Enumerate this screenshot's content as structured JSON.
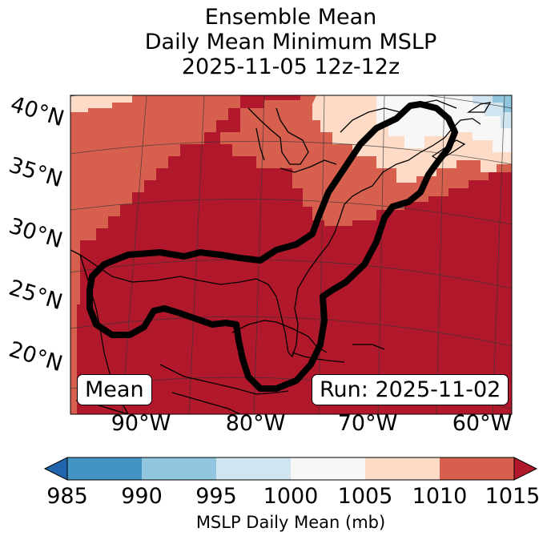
{
  "title": {
    "line1": "Ensemble Mean",
    "line2": "Daily Mean Minimum MSLP",
    "line3": "2025-11-05 12z-12z"
  },
  "map": {
    "lat_labels": [
      "40°N",
      "35°N",
      "30°N",
      "25°N",
      "20°N"
    ],
    "lon_labels": [
      "90°W",
      "80°W",
      "70°W",
      "60°W"
    ],
    "badge_left": "Mean",
    "badge_right": "Run: 2025-11-02",
    "contour_color": "#000000",
    "field_colors": {
      "<985": "#2166ac",
      "985-990": "#4393c3",
      "990-995": "#92c5de",
      "995-1000": "#d1e5f0",
      "1000-1005": "#f7f7f7",
      "1005-1010": "#fddbc7",
      "1010-1015": "#d6604d",
      ">1015": "#b2182b"
    }
  },
  "colorbar": {
    "ticks": [
      "985",
      "990",
      "995",
      "1000",
      "1005",
      "1010",
      "1015"
    ],
    "colors": [
      "#4393c3",
      "#92c5de",
      "#d1e5f0",
      "#f7f7f7",
      "#fddbc7",
      "#d6604d"
    ],
    "under_color": "#2166ac",
    "over_color": "#b2182b",
    "label": "MSLP Daily Mean (mb)"
  }
}
